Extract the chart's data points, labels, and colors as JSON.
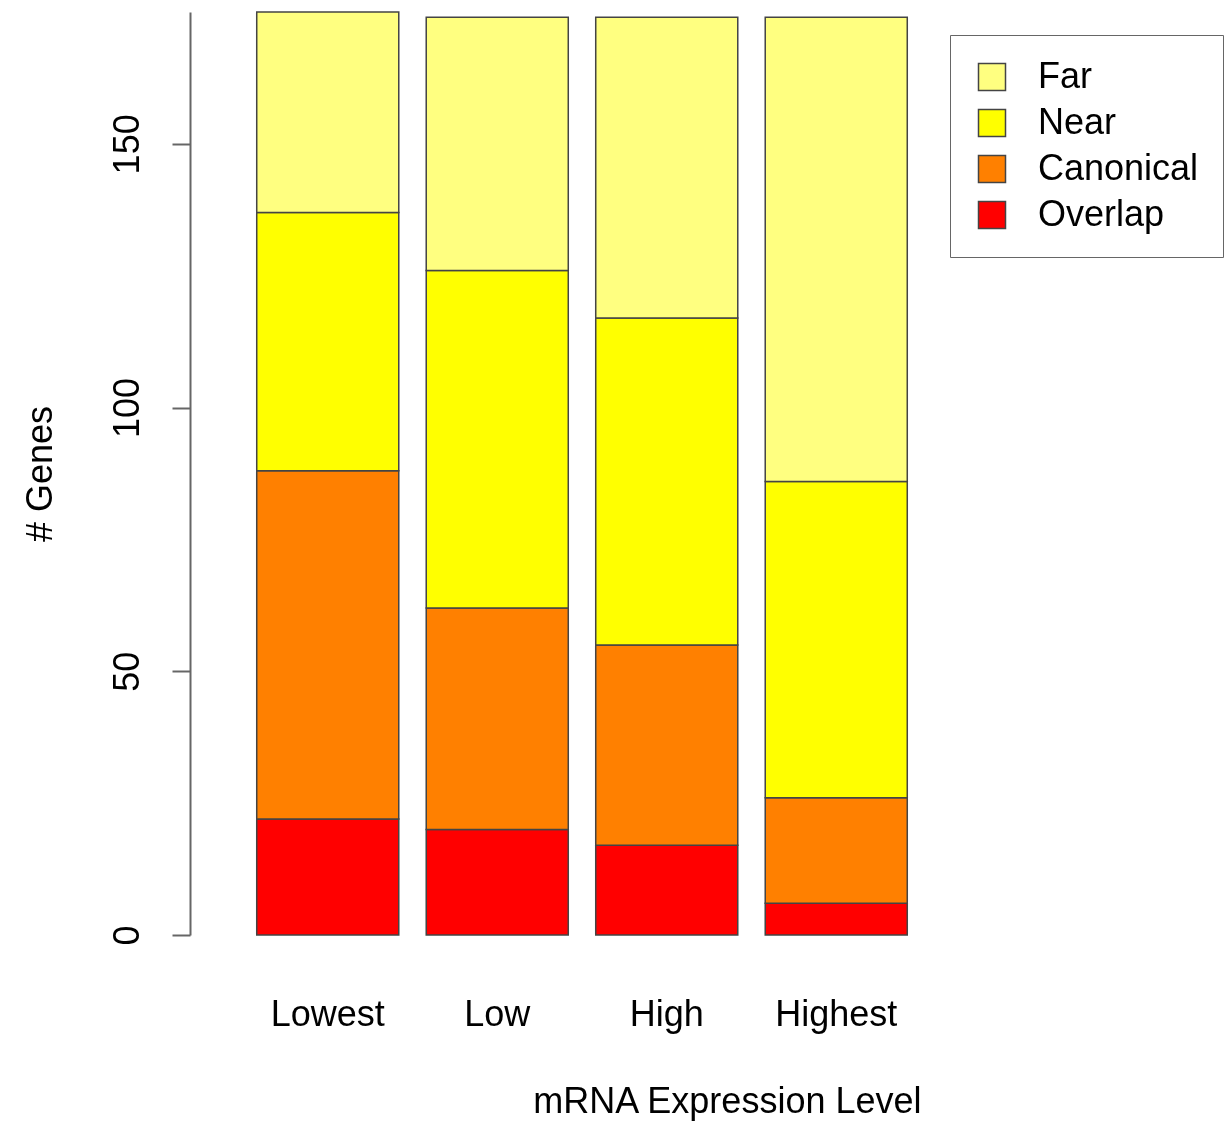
{
  "chart_data": {
    "type": "bar",
    "stacked": true,
    "categories": [
      "Lowest",
      "Low",
      "High",
      "Highest"
    ],
    "series": [
      {
        "name": "Overlap",
        "color": "#ff0000",
        "values": [
          22,
          20,
          17,
          6
        ]
      },
      {
        "name": "Canonical",
        "color": "#ff8000",
        "values": [
          66,
          42,
          38,
          20
        ]
      },
      {
        "name": "Near",
        "color": "#ffff00",
        "values": [
          49,
          64,
          62,
          60
        ]
      },
      {
        "name": "Far",
        "color": "#ffff80",
        "values": [
          38,
          48,
          57,
          88
        ]
      }
    ],
    "xlabel": "mRNA Expression Level",
    "ylabel": "# Genes",
    "ylim": [
      0,
      175
    ],
    "yticks": [
      0,
      50,
      100,
      150
    ],
    "grid": false,
    "legend": "top right"
  }
}
